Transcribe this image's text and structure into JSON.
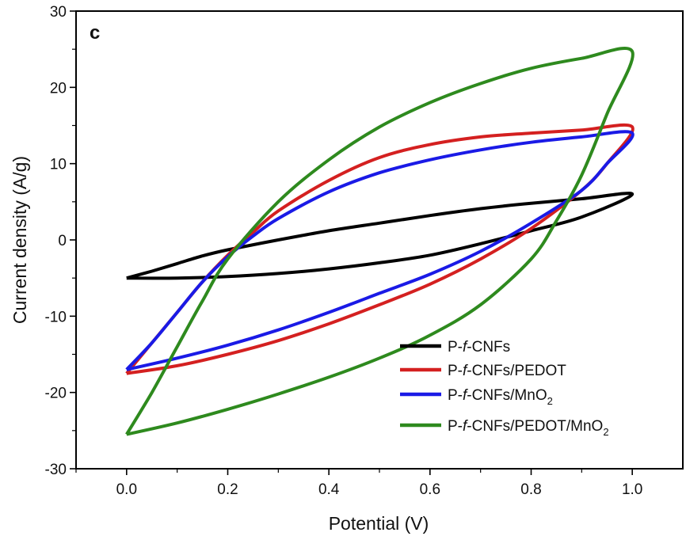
{
  "chart_data": {
    "type": "line",
    "panel_label": "c",
    "xlabel": "Potential (V)",
    "ylabel": "Current density (A/g)",
    "xlim": [
      -0.1,
      1.1
    ],
    "ylim": [
      -30,
      30
    ],
    "xticks": [
      "0.0",
      "0.2",
      "0.4",
      "0.6",
      "0.8",
      "1.0"
    ],
    "yticks": [
      "-30",
      "-20",
      "-10",
      "0",
      "10",
      "20",
      "30"
    ],
    "grid": false,
    "legend_position": "bottom-right",
    "series": [
      {
        "legend": {
          "prefix": "P-",
          "italic": "f",
          "suffix": "-CNFs",
          "sub": "",
          "tail": ""
        },
        "color": "#000000",
        "points": [
          [
            0.0,
            -5.0
          ],
          [
            0.05,
            -4.1
          ],
          [
            0.1,
            -3.1
          ],
          [
            0.15,
            -2.1
          ],
          [
            0.2,
            -1.3
          ],
          [
            0.3,
            0.0
          ],
          [
            0.4,
            1.2
          ],
          [
            0.5,
            2.2
          ],
          [
            0.6,
            3.2
          ],
          [
            0.7,
            4.1
          ],
          [
            0.8,
            4.8
          ],
          [
            0.9,
            5.4
          ],
          [
            1.0,
            6.0
          ],
          [
            0.9,
            3.0
          ],
          [
            0.8,
            1.2
          ],
          [
            0.7,
            -0.5
          ],
          [
            0.6,
            -2.0
          ],
          [
            0.5,
            -3.0
          ],
          [
            0.4,
            -3.8
          ],
          [
            0.3,
            -4.4
          ],
          [
            0.2,
            -4.8
          ],
          [
            0.1,
            -5.0
          ],
          [
            0.0,
            -5.0
          ]
        ]
      },
      {
        "legend": {
          "prefix": "P-",
          "italic": "f",
          "suffix": "-CNFs/PEDOT",
          "sub": "",
          "tail": ""
        },
        "color": "#d42020",
        "points": [
          [
            0.0,
            -17.5
          ],
          [
            0.05,
            -13.5
          ],
          [
            0.1,
            -9.5
          ],
          [
            0.15,
            -5.5
          ],
          [
            0.2,
            -2.0
          ],
          [
            0.25,
            1.0
          ],
          [
            0.3,
            3.8
          ],
          [
            0.4,
            7.8
          ],
          [
            0.5,
            10.8
          ],
          [
            0.6,
            12.5
          ],
          [
            0.7,
            13.5
          ],
          [
            0.8,
            14.0
          ],
          [
            0.9,
            14.4
          ],
          [
            1.0,
            14.8
          ],
          [
            0.95,
            10.0
          ],
          [
            0.9,
            6.5
          ],
          [
            0.8,
            1.5
          ],
          [
            0.7,
            -2.5
          ],
          [
            0.6,
            -5.8
          ],
          [
            0.5,
            -8.5
          ],
          [
            0.4,
            -11.0
          ],
          [
            0.3,
            -13.2
          ],
          [
            0.2,
            -15.0
          ],
          [
            0.1,
            -16.5
          ],
          [
            0.0,
            -17.5
          ]
        ]
      },
      {
        "legend": {
          "prefix": "P-",
          "italic": "f",
          "suffix": "-CNFs/MnO",
          "sub": "2",
          "tail": ""
        },
        "color": "#1a1ae6",
        "points": [
          [
            0.0,
            -17.0
          ],
          [
            0.05,
            -13.5
          ],
          [
            0.1,
            -9.5
          ],
          [
            0.15,
            -5.5
          ],
          [
            0.2,
            -2.2
          ],
          [
            0.25,
            0.5
          ],
          [
            0.3,
            2.8
          ],
          [
            0.4,
            6.3
          ],
          [
            0.5,
            8.8
          ],
          [
            0.6,
            10.5
          ],
          [
            0.7,
            11.8
          ],
          [
            0.8,
            12.8
          ],
          [
            0.9,
            13.5
          ],
          [
            1.0,
            14.0
          ],
          [
            0.95,
            10.0
          ],
          [
            0.9,
            6.5
          ],
          [
            0.8,
            2.2
          ],
          [
            0.7,
            -1.5
          ],
          [
            0.6,
            -4.5
          ],
          [
            0.5,
            -7.0
          ],
          [
            0.4,
            -9.5
          ],
          [
            0.3,
            -11.8
          ],
          [
            0.2,
            -13.8
          ],
          [
            0.1,
            -15.5
          ],
          [
            0.0,
            -17.0
          ]
        ]
      },
      {
        "legend": {
          "prefix": "P-",
          "italic": "f",
          "suffix": "-CNFs/PEDOT/MnO",
          "sub": "2",
          "tail": ""
        },
        "color": "#2e8a1e",
        "points": [
          [
            0.0,
            -25.5
          ],
          [
            0.05,
            -20.0
          ],
          [
            0.1,
            -14.0
          ],
          [
            0.15,
            -8.0
          ],
          [
            0.2,
            -2.5
          ],
          [
            0.3,
            5.0
          ],
          [
            0.4,
            10.5
          ],
          [
            0.5,
            14.8
          ],
          [
            0.6,
            18.0
          ],
          [
            0.7,
            20.5
          ],
          [
            0.8,
            22.5
          ],
          [
            0.9,
            23.8
          ],
          [
            1.0,
            24.7
          ],
          [
            0.95,
            16.5
          ],
          [
            0.9,
            8.5
          ],
          [
            0.85,
            2.5
          ],
          [
            0.8,
            -2.5
          ],
          [
            0.7,
            -8.5
          ],
          [
            0.6,
            -12.5
          ],
          [
            0.5,
            -15.5
          ],
          [
            0.4,
            -18.0
          ],
          [
            0.3,
            -20.2
          ],
          [
            0.2,
            -22.2
          ],
          [
            0.1,
            -24.0
          ],
          [
            0.0,
            -25.5
          ]
        ]
      }
    ]
  }
}
